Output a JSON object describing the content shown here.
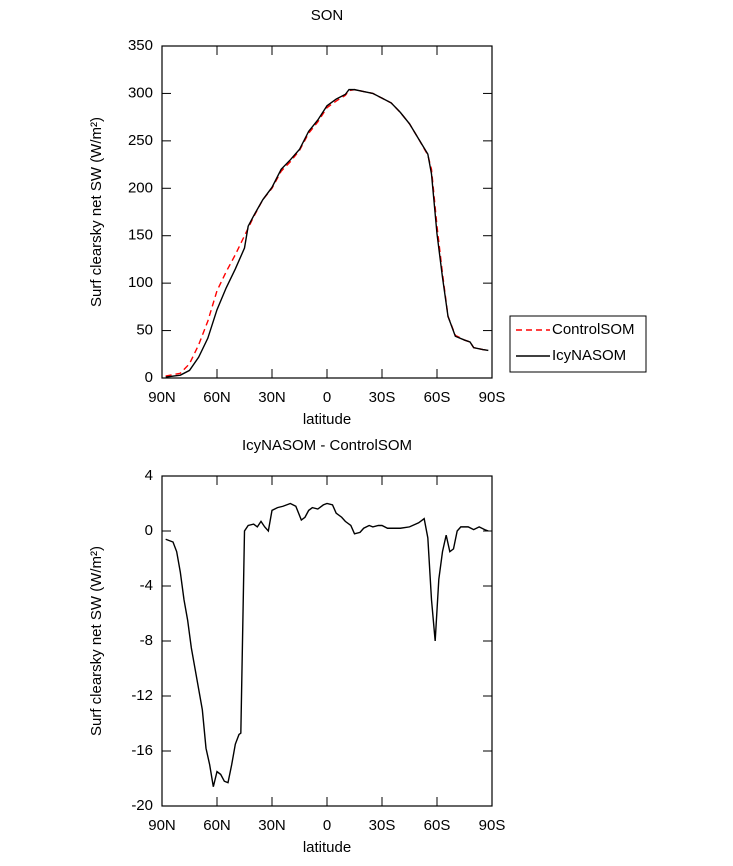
{
  "chart_data": [
    {
      "type": "line",
      "title": "SON",
      "x_label": "latitude",
      "y_label": "Surf clearsky net SW (W/m²)",
      "xlim": [
        90,
        -90
      ],
      "xticks": [
        {
          "value": 90,
          "label": "90N"
        },
        {
          "value": 60,
          "label": "60N"
        },
        {
          "value": 30,
          "label": "30N"
        },
        0,
        {
          "value": -30,
          "label": "30S"
        },
        {
          "value": -60,
          "label": "60S"
        },
        {
          "value": -90,
          "label": "90S"
        }
      ],
      "ylim": [
        0,
        350
      ],
      "yticks": [
        0,
        50,
        100,
        150,
        200,
        250,
        300,
        350
      ],
      "legend": "outside-right",
      "x": [
        88,
        80,
        75,
        70,
        65,
        60,
        55,
        50,
        45,
        43,
        40,
        35,
        30,
        25,
        20,
        15,
        10,
        5,
        0,
        -5,
        -10,
        -12,
        -15,
        -20,
        -25,
        -30,
        -35,
        -40,
        -45,
        -50,
        -55,
        -57,
        -60,
        -63,
        -66,
        -70,
        -75,
        -78,
        -80,
        -85,
        -88
      ],
      "series": [
        {
          "name": "ControlSOM",
          "color": "#ff0000",
          "line_style": "dashed",
          "values": [
            2,
            5,
            15,
            35,
            60,
            92,
            112,
            130,
            150,
            158,
            170,
            188,
            200,
            218,
            228,
            240,
            258,
            270,
            285,
            292,
            298,
            303,
            304,
            302,
            300,
            295,
            290,
            280,
            268,
            252,
            235,
            220,
            160,
            110,
            65,
            45,
            40,
            38,
            32,
            30,
            29
          ]
        },
        {
          "name": "IcyNASOM",
          "color": "#000000",
          "line_style": "solid",
          "values": [
            1,
            3,
            8,
            22,
            42,
            72,
            95,
            115,
            137,
            160,
            171,
            188,
            201,
            220,
            230,
            241,
            260,
            272,
            287,
            294,
            299,
            304,
            304,
            302,
            300,
            295,
            290,
            280,
            268,
            252,
            236,
            215,
            152,
            106,
            65,
            44,
            40,
            38,
            32,
            30,
            29
          ]
        }
      ]
    },
    {
      "type": "line",
      "title": "IcyNASOM - ControlSOM",
      "x_label": "latitude",
      "y_label": "Surf clearsky net SW (W/m²)",
      "xlim": [
        90,
        -90
      ],
      "xticks": [
        {
          "value": 90,
          "label": "90N"
        },
        {
          "value": 60,
          "label": "60N"
        },
        {
          "value": 30,
          "label": "30N"
        },
        0,
        {
          "value": -30,
          "label": "30S"
        },
        {
          "value": -60,
          "label": "60S"
        },
        {
          "value": -90,
          "label": "90S"
        }
      ],
      "ylim": [
        -20,
        4
      ],
      "yticks": [
        4,
        0,
        -4,
        -8,
        -12,
        -16,
        -20
      ],
      "x": [
        88,
        84,
        82,
        80,
        78,
        76,
        74,
        72,
        70,
        68,
        66,
        64,
        62,
        60,
        58,
        56,
        54,
        52,
        50,
        48,
        47,
        45,
        43,
        40,
        38,
        36,
        34,
        32,
        30,
        27,
        24,
        20,
        17,
        14,
        12,
        10,
        8,
        5,
        2,
        0,
        -3,
        -5,
        -8,
        -10,
        -13,
        -15,
        -18,
        -20,
        -23,
        -25,
        -28,
        -30,
        -33,
        -40,
        -45,
        -50,
        -53,
        -55,
        -57,
        -59,
        -61,
        -63,
        -65,
        -67,
        -69,
        -71,
        -73,
        -77,
        -80,
        -83,
        -86,
        -88
      ],
      "series": [
        {
          "name": "IcyNASOM - ControlSOM",
          "color": "#000000",
          "line_style": "solid",
          "values": [
            -0.6,
            -0.8,
            -1.5,
            -3,
            -5,
            -6.5,
            -8.5,
            -10,
            -11.5,
            -13,
            -15.8,
            -17,
            -18.6,
            -17.5,
            -17.7,
            -18.2,
            -18.3,
            -17,
            -15.5,
            -14.8,
            -14.7,
            0,
            0.4,
            0.5,
            0.3,
            0.7,
            0.3,
            0,
            1.5,
            1.7,
            1.8,
            2,
            1.8,
            0.8,
            1.0,
            1.5,
            1.7,
            1.6,
            1.9,
            2,
            1.9,
            1.3,
            1.0,
            0.7,
            0.4,
            -0.2,
            -0.1,
            0.2,
            0.4,
            0.3,
            0.4,
            0.4,
            0.2,
            0.2,
            0.3,
            0.6,
            0.9,
            -0.5,
            -5,
            -8,
            -3.5,
            -1.5,
            -0.3,
            -1.5,
            -1.3,
            0,
            0.3,
            0.3,
            0.1,
            0.3,
            0.1,
            0
          ]
        }
      ]
    }
  ]
}
